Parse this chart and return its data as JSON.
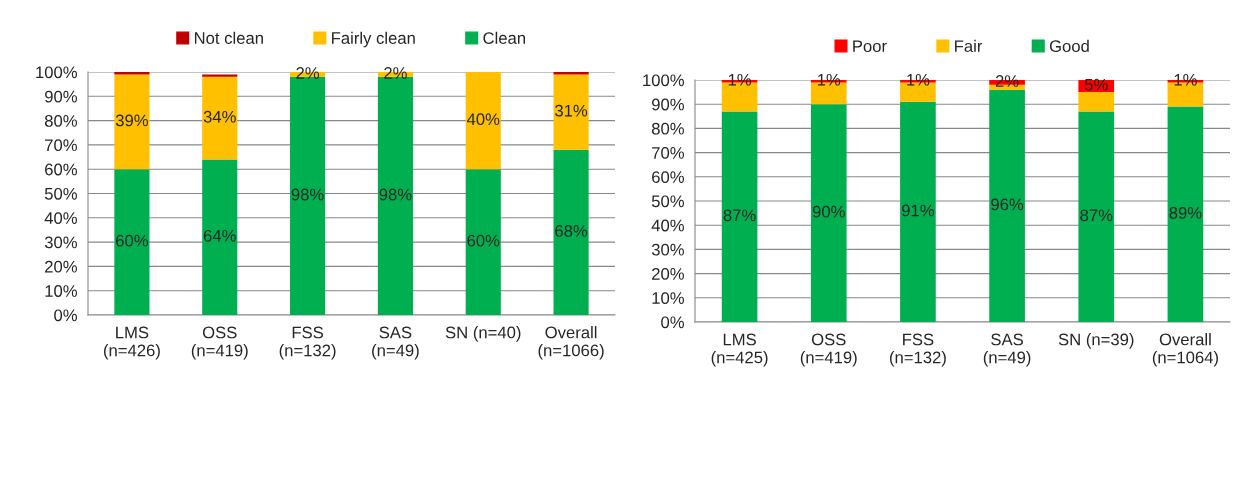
{
  "chart_data": [
    {
      "type": "bar",
      "stacked": true,
      "categories": [
        "LMS\n(n=426)",
        "OSS\n(n=419)",
        "FSS\n(n=132)",
        "SAS\n(n=49)",
        "SN (n=40)",
        "Overall\n(n=1066)"
      ],
      "series": [
        {
          "name": "Clean",
          "color": "#00b050",
          "values": [
            60,
            64,
            98,
            98,
            60,
            68
          ],
          "value_labels": [
            "60%",
            "64%",
            "98%",
            "98%",
            "60%",
            "68%"
          ]
        },
        {
          "name": "Fairly clean",
          "color": "#ffc000",
          "values": [
            39,
            34,
            2,
            2,
            40,
            31
          ],
          "value_labels": [
            "39%",
            "34%",
            "2%",
            "2%",
            "40%",
            "31%"
          ]
        },
        {
          "name": "Not clean",
          "color": "#c00000",
          "values": [
            1,
            1,
            0,
            0,
            0,
            1
          ],
          "value_labels": [
            null,
            null,
            null,
            null,
            null,
            null
          ]
        }
      ],
      "ylim": [
        0,
        100
      ],
      "yticks": [
        {
          "value": 0,
          "label": "0%"
        },
        {
          "value": 10,
          "label": "10%"
        },
        {
          "value": 20,
          "label": "20%"
        },
        {
          "value": 30,
          "label": "30%"
        },
        {
          "value": 40,
          "label": "40%"
        },
        {
          "value": 50,
          "label": "50%"
        },
        {
          "value": 60,
          "label": "60%"
        },
        {
          "value": 70,
          "label": "70%"
        },
        {
          "value": 80,
          "label": "80%"
        },
        {
          "value": 90,
          "label": "90%"
        },
        {
          "value": 100,
          "label": "100%"
        }
      ],
      "grid": "y",
      "legend": "top"
    },
    {
      "type": "bar",
      "stacked": true,
      "categories": [
        "LMS\n(n=425)",
        "OSS\n(n=419)",
        "FSS\n(n=132)",
        "SAS\n(n=49)",
        "SN (n=39)",
        "Overall\n(n=1064)"
      ],
      "series": [
        {
          "name": "Good",
          "color": "#00b050",
          "values": [
            87,
            90,
            91,
            96,
            87,
            89
          ],
          "value_labels": [
            "87%",
            "90%",
            "91%",
            "96%",
            "87%",
            "89%"
          ]
        },
        {
          "name": "Fair",
          "color": "#ffc000",
          "values": [
            12,
            9,
            8,
            2,
            8,
            10
          ],
          "value_labels": [
            null,
            null,
            null,
            null,
            null,
            null
          ]
        },
        {
          "name": "Poor",
          "color": "#ff0000",
          "values": [
            1,
            1,
            1,
            2,
            5,
            1
          ],
          "value_labels": [
            "1%",
            "1%",
            "1%",
            "2%",
            "5%",
            "1%"
          ]
        }
      ],
      "ylim": [
        0,
        100
      ],
      "yticks": [
        {
          "value": 0,
          "label": "0%"
        },
        {
          "value": 10,
          "label": "10%"
        },
        {
          "value": 20,
          "label": "20%"
        },
        {
          "value": 30,
          "label": "30%"
        },
        {
          "value": 40,
          "label": "40%"
        },
        {
          "value": 50,
          "label": "50%"
        },
        {
          "value": 60,
          "label": "60%"
        },
        {
          "value": 70,
          "label": "70%"
        },
        {
          "value": 80,
          "label": "80%"
        },
        {
          "value": 90,
          "label": "90%"
        },
        {
          "value": 100,
          "label": "100%"
        }
      ],
      "grid": "y",
      "legend": "top"
    }
  ]
}
